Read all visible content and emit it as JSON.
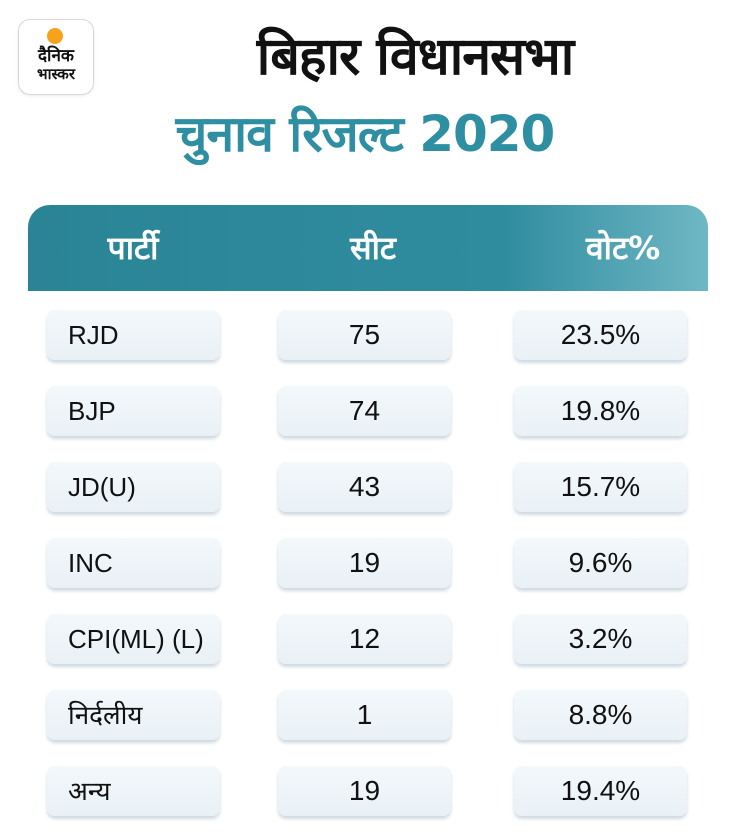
{
  "logo": {
    "line1": "दैनिक",
    "line2": "भास्कर"
  },
  "title": {
    "line1": "बिहार विधानसभा",
    "line2": "चुनाव रिजल्ट 2020"
  },
  "colors": {
    "accent": "#2f8fa2",
    "header_bg": "#2a8496",
    "logo_sun": "#f6a21b"
  },
  "chart_data": {
    "type": "table",
    "columns": [
      "पार्टी",
      "सीट",
      "वोट%"
    ],
    "rows": [
      [
        "RJD",
        "75",
        "23.5%"
      ],
      [
        "BJP",
        "74",
        "19.8%"
      ],
      [
        "JD(U)",
        "43",
        "15.7%"
      ],
      [
        "INC",
        "19",
        "9.6%"
      ],
      [
        "CPI(ML) (L)",
        "12",
        "3.2%"
      ],
      [
        "निर्दलीय",
        "1",
        "8.8%"
      ],
      [
        "अन्य",
        "19",
        "19.4%"
      ]
    ]
  }
}
